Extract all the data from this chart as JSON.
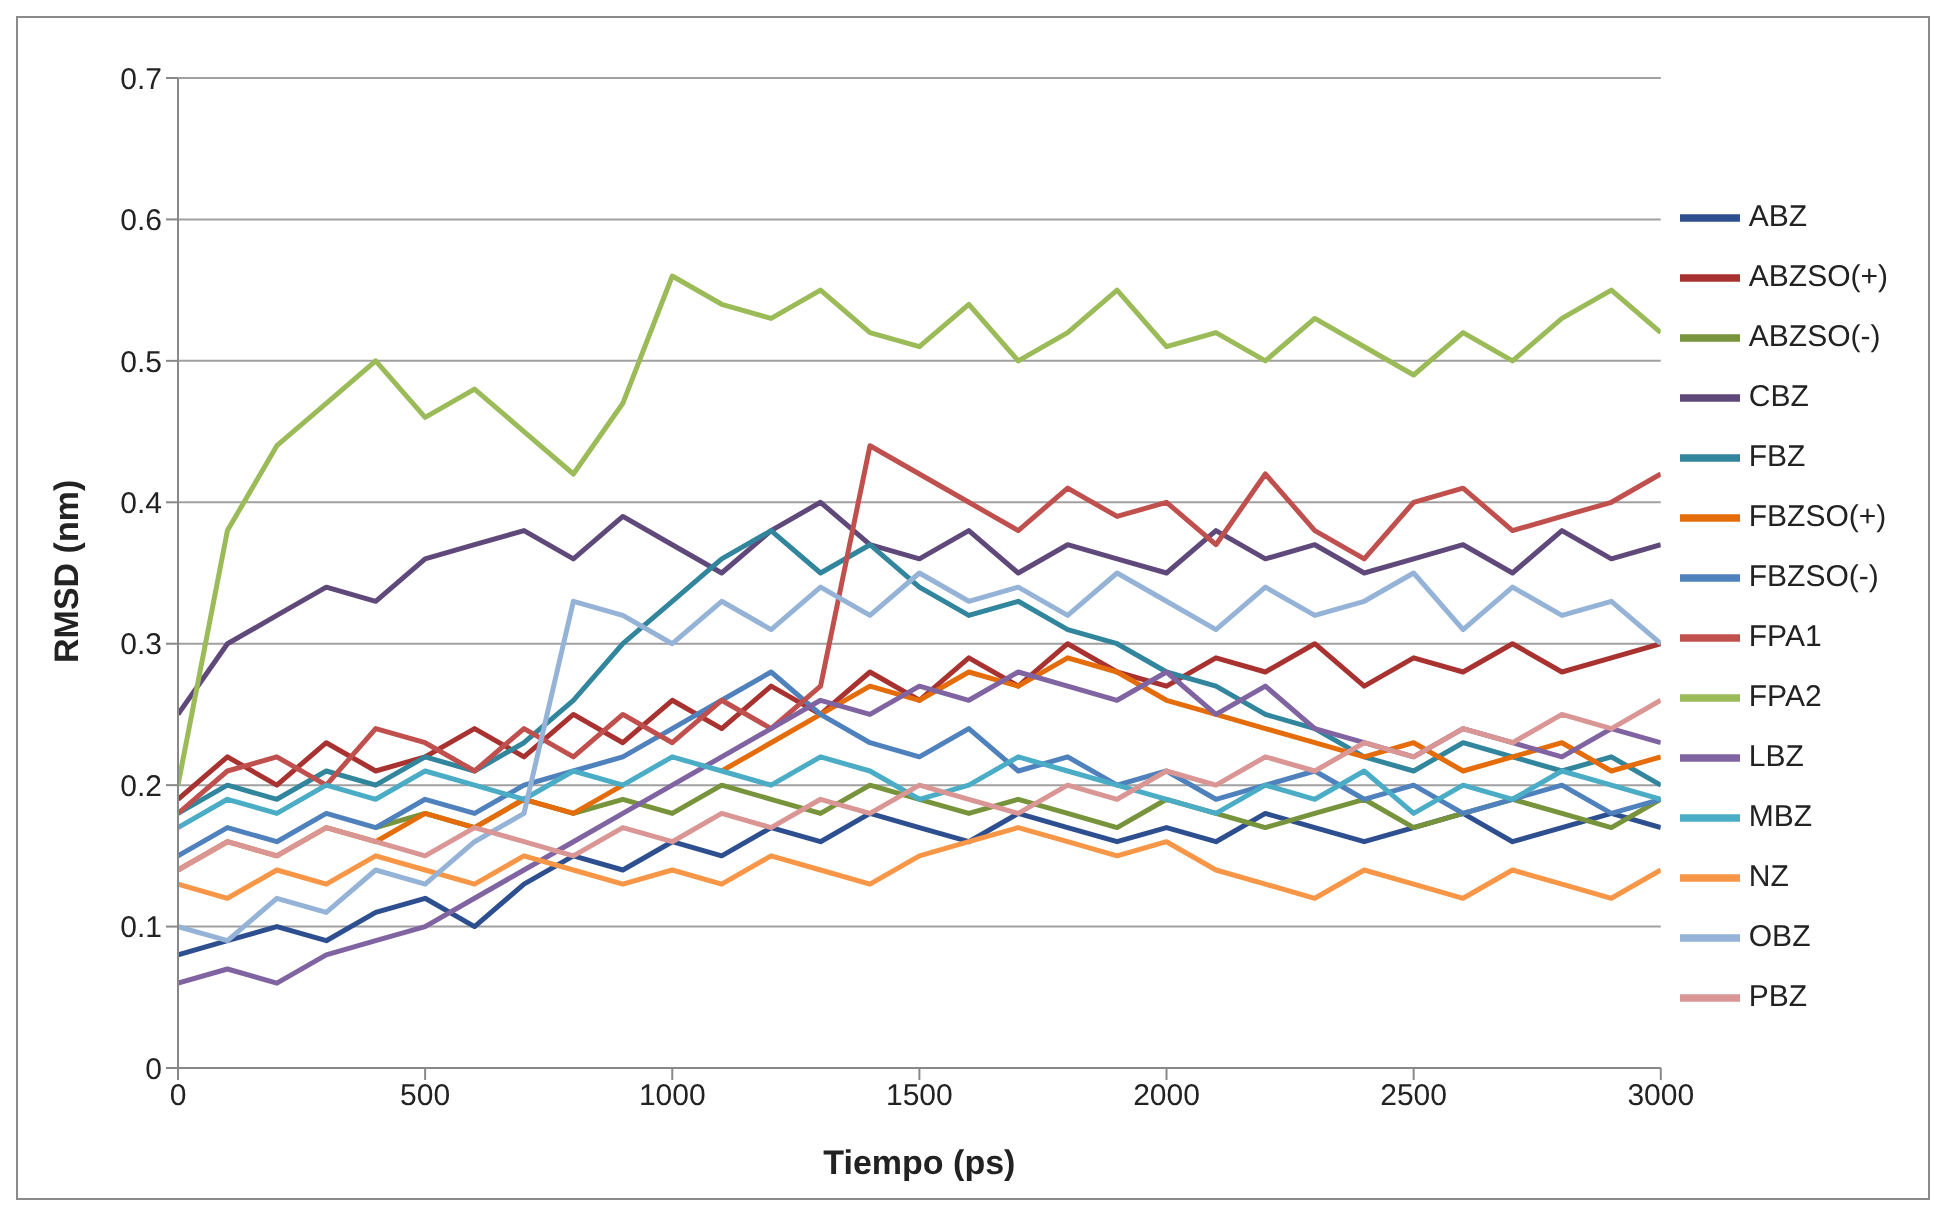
{
  "chart_data": {
    "type": "line",
    "xlabel": "Tiempo (ps)",
    "ylabel": "RMSD (nm)",
    "x": [
      0,
      100,
      200,
      300,
      400,
      500,
      600,
      700,
      800,
      900,
      1000,
      1100,
      1200,
      1300,
      1400,
      1500,
      1600,
      1700,
      1800,
      1900,
      2000,
      2100,
      2200,
      2300,
      2400,
      2500,
      2600,
      2700,
      2800,
      2900,
      3000
    ],
    "xlim": [
      0,
      3000
    ],
    "xticks": [
      0,
      500,
      1000,
      1500,
      2000,
      2500,
      3000
    ],
    "ylim": [
      0,
      0.7
    ],
    "yticks": [
      0,
      0.1,
      0.2,
      0.3,
      0.4,
      0.5,
      0.6,
      0.7
    ],
    "grid": "y",
    "legend": "right",
    "marker": "none",
    "line_style": "solid",
    "series": [
      {
        "name": "ABZ",
        "color": "#2e4f8f",
        "values": [
          0.08,
          0.09,
          0.1,
          0.09,
          0.11,
          0.12,
          0.1,
          0.13,
          0.15,
          0.14,
          0.16,
          0.15,
          0.17,
          0.16,
          0.18,
          0.17,
          0.16,
          0.18,
          0.17,
          0.16,
          0.17,
          0.16,
          0.18,
          0.17,
          0.16,
          0.17,
          0.18,
          0.16,
          0.17,
          0.18,
          0.17
        ]
      },
      {
        "name": "ABZSO(+)",
        "color": "#a8322f",
        "values": [
          0.19,
          0.22,
          0.2,
          0.23,
          0.21,
          0.22,
          0.24,
          0.22,
          0.25,
          0.23,
          0.26,
          0.24,
          0.27,
          0.25,
          0.28,
          0.26,
          0.29,
          0.27,
          0.3,
          0.28,
          0.27,
          0.29,
          0.28,
          0.3,
          0.27,
          0.29,
          0.28,
          0.3,
          0.28,
          0.29,
          0.3
        ]
      },
      {
        "name": "ABZSO(-)",
        "color": "#77933c",
        "values": [
          null,
          null,
          null,
          null,
          0.17,
          0.18,
          0.17,
          0.19,
          0.18,
          0.19,
          0.18,
          0.2,
          0.19,
          0.18,
          0.2,
          0.19,
          0.18,
          0.19,
          0.18,
          0.17,
          0.19,
          0.18,
          0.17,
          0.18,
          0.19,
          0.17,
          0.18,
          0.19,
          0.18,
          0.17,
          0.19
        ]
      },
      {
        "name": "CBZ",
        "color": "#5f497a",
        "values": [
          0.25,
          0.3,
          0.32,
          0.34,
          0.33,
          0.36,
          0.37,
          0.38,
          0.36,
          0.39,
          0.37,
          0.35,
          0.38,
          0.4,
          0.37,
          0.36,
          0.38,
          0.35,
          0.37,
          0.36,
          0.35,
          0.38,
          0.36,
          0.37,
          0.35,
          0.36,
          0.37,
          0.35,
          0.38,
          0.36,
          0.37
        ]
      },
      {
        "name": "FBZ",
        "color": "#31859c",
        "values": [
          0.18,
          0.2,
          0.19,
          0.21,
          0.2,
          0.22,
          0.21,
          0.23,
          0.26,
          0.3,
          0.33,
          0.36,
          0.38,
          0.35,
          0.37,
          0.34,
          0.32,
          0.33,
          0.31,
          0.3,
          0.28,
          0.27,
          0.25,
          0.24,
          0.22,
          0.21,
          0.23,
          0.22,
          0.21,
          0.22,
          0.2
        ]
      },
      {
        "name": "FBZSO(+)",
        "color": "#e46c0a",
        "values": [
          0.14,
          0.16,
          0.15,
          0.17,
          0.16,
          0.18,
          0.17,
          0.19,
          0.18,
          0.2,
          null,
          0.21,
          0.23,
          0.25,
          0.27,
          0.26,
          0.28,
          0.27,
          0.29,
          0.28,
          0.26,
          0.25,
          0.24,
          0.23,
          0.22,
          0.23,
          0.21,
          0.22,
          0.23,
          0.21,
          0.22
        ]
      },
      {
        "name": "FBZSO(-)",
        "color": "#4f81bd",
        "values": [
          0.15,
          0.17,
          0.16,
          0.18,
          0.17,
          0.19,
          0.18,
          0.2,
          0.21,
          0.22,
          0.24,
          0.26,
          0.28,
          0.25,
          0.23,
          0.22,
          0.24,
          0.21,
          0.22,
          0.2,
          0.21,
          0.19,
          0.2,
          0.21,
          0.19,
          0.2,
          0.18,
          0.19,
          0.2,
          0.18,
          0.19
        ]
      },
      {
        "name": "FPA1",
        "color": "#c0504d",
        "values": [
          0.18,
          0.21,
          0.22,
          0.2,
          0.24,
          0.23,
          0.21,
          0.24,
          0.22,
          0.25,
          0.23,
          0.26,
          0.24,
          0.27,
          0.44,
          0.42,
          0.4,
          0.38,
          0.41,
          0.39,
          0.4,
          0.37,
          0.42,
          0.38,
          0.36,
          0.4,
          0.41,
          0.38,
          0.39,
          0.4,
          0.42
        ]
      },
      {
        "name": "FPA2",
        "color": "#9bbb59",
        "values": [
          0.2,
          0.38,
          0.44,
          0.47,
          0.5,
          0.46,
          0.48,
          0.45,
          0.42,
          0.47,
          0.56,
          0.54,
          0.53,
          0.55,
          0.52,
          0.51,
          0.54,
          0.5,
          0.52,
          0.55,
          0.51,
          0.52,
          0.5,
          0.53,
          0.51,
          0.49,
          0.52,
          0.5,
          0.53,
          0.55,
          0.52
        ]
      },
      {
        "name": "LBZ",
        "color": "#8064a2",
        "values": [
          0.06,
          0.07,
          0.06,
          0.08,
          0.09,
          0.1,
          0.12,
          0.14,
          0.16,
          0.18,
          0.2,
          0.22,
          0.24,
          0.26,
          0.25,
          0.27,
          0.26,
          0.28,
          0.27,
          0.26,
          0.28,
          0.25,
          0.27,
          0.24,
          0.23,
          0.22,
          0.24,
          0.23,
          0.22,
          0.24,
          0.23
        ]
      },
      {
        "name": "MBZ",
        "color": "#4bacc6",
        "values": [
          0.17,
          0.19,
          0.18,
          0.2,
          0.19,
          0.21,
          0.2,
          0.19,
          0.21,
          0.2,
          0.22,
          0.21,
          0.2,
          0.22,
          0.21,
          0.19,
          0.2,
          0.22,
          0.21,
          0.2,
          0.19,
          0.18,
          0.2,
          0.19,
          0.21,
          0.18,
          0.2,
          0.19,
          0.21,
          0.2,
          0.19
        ]
      },
      {
        "name": "NZ",
        "color": "#f79646",
        "values": [
          0.13,
          0.12,
          0.14,
          0.13,
          0.15,
          0.14,
          0.13,
          0.15,
          0.14,
          0.13,
          0.14,
          0.13,
          0.15,
          0.14,
          0.13,
          0.15,
          0.16,
          0.17,
          0.16,
          0.15,
          0.16,
          0.14,
          0.13,
          0.12,
          0.14,
          0.13,
          0.12,
          0.14,
          0.13,
          0.12,
          0.14
        ]
      },
      {
        "name": "OBZ",
        "color": "#95b3d7",
        "values": [
          0.1,
          0.09,
          0.12,
          0.11,
          0.14,
          0.13,
          0.16,
          0.18,
          0.33,
          0.32,
          0.3,
          0.33,
          0.31,
          0.34,
          0.32,
          0.35,
          0.33,
          0.34,
          0.32,
          0.35,
          0.33,
          0.31,
          0.34,
          0.32,
          0.33,
          0.35,
          0.31,
          0.34,
          0.32,
          0.33,
          0.3
        ]
      },
      {
        "name": "PBZ",
        "color": "#d99694",
        "values": [
          0.14,
          0.16,
          0.15,
          0.17,
          0.16,
          0.15,
          0.17,
          0.16,
          0.15,
          0.17,
          0.16,
          0.18,
          0.17,
          0.19,
          0.18,
          0.2,
          0.19,
          0.18,
          0.2,
          0.19,
          0.21,
          0.2,
          0.22,
          0.21,
          0.23,
          0.22,
          0.24,
          0.23,
          0.25,
          0.24,
          0.26
        ]
      }
    ]
  }
}
